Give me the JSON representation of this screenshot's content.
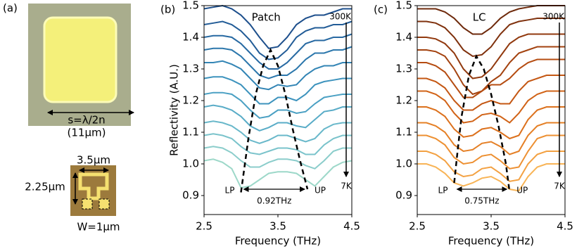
{
  "panel_a": {
    "panel": "(a)",
    "patch_size": "s=λ/2n",
    "patch_size_um": "(11μm)",
    "lc_width": "3.5μm",
    "lc_height": "2.25μm",
    "lc_gap": "W=1μm"
  },
  "chart_data": [
    {
      "type": "line",
      "panel": "(b)",
      "title": "Patch",
      "x_label": "Frequency (THz)",
      "y_label": "Reflectivity (A.U.)",
      "temp_top": "300K",
      "temp_bottom": "7K",
      "lp_label": "LP",
      "up_label": "UP",
      "splitting_label": "0.92THz",
      "xlim": [
        2.5,
        4.5
      ],
      "xticks": [
        2.5,
        3.5,
        4.5
      ],
      "ylim": [
        0.84,
        1.5
      ],
      "yticks": [
        0.9,
        {
          "value": 1,
          "label": "1.0"
        },
        1.1,
        1.2,
        1.3,
        1.4,
        1.5
      ],
      "x": [
        2.5,
        2.625,
        2.75,
        2.875,
        3.0,
        3.125,
        3.25,
        3.375,
        3.5,
        3.625,
        3.75,
        3.875,
        4.0,
        4.125,
        4.25,
        4.375,
        4.5
      ],
      "series": [
        {
          "color": "#1d4f8c",
          "values": [
            1.49,
            1.495,
            1.5,
            1.49,
            1.47,
            1.44,
            1.4,
            1.365,
            1.37,
            1.4,
            1.44,
            1.46,
            1.47,
            1.47,
            1.48,
            1.49,
            1.49
          ]
        },
        {
          "color": "#225c97",
          "values": [
            1.44,
            1.445,
            1.45,
            1.44,
            1.42,
            1.39,
            1.35,
            1.33,
            1.335,
            1.36,
            1.4,
            1.42,
            1.43,
            1.43,
            1.44,
            1.44,
            1.45
          ]
        },
        {
          "color": "#2769a2",
          "values": [
            1.4,
            1.405,
            1.405,
            1.4,
            1.38,
            1.35,
            1.32,
            1.3,
            1.3,
            1.32,
            1.35,
            1.38,
            1.39,
            1.39,
            1.4,
            1.4,
            1.41
          ]
        },
        {
          "color": "#2c77ac",
          "values": [
            1.36,
            1.365,
            1.365,
            1.36,
            1.34,
            1.31,
            1.28,
            1.27,
            1.28,
            1.28,
            1.3,
            1.33,
            1.35,
            1.35,
            1.36,
            1.36,
            1.37
          ]
        },
        {
          "color": "#3385b5",
          "values": [
            1.32,
            1.32,
            1.325,
            1.315,
            1.3,
            1.27,
            1.24,
            1.235,
            1.25,
            1.245,
            1.25,
            1.28,
            1.3,
            1.31,
            1.31,
            1.32,
            1.32
          ]
        },
        {
          "color": "#3d93bd",
          "values": [
            1.27,
            1.275,
            1.275,
            1.265,
            1.25,
            1.22,
            1.19,
            1.19,
            1.21,
            1.21,
            1.2,
            1.22,
            1.25,
            1.26,
            1.265,
            1.27,
            1.27
          ]
        },
        {
          "color": "#4aa0c3",
          "values": [
            1.22,
            1.225,
            1.225,
            1.22,
            1.2,
            1.17,
            1.145,
            1.15,
            1.17,
            1.17,
            1.16,
            1.165,
            1.19,
            1.21,
            1.215,
            1.22,
            1.22
          ]
        },
        {
          "color": "#59acc7",
          "values": [
            1.18,
            1.185,
            1.18,
            1.17,
            1.15,
            1.12,
            1.105,
            1.115,
            1.13,
            1.13,
            1.12,
            1.115,
            1.14,
            1.165,
            1.17,
            1.18,
            1.18
          ]
        },
        {
          "color": "#69b8ca",
          "values": [
            1.13,
            1.135,
            1.13,
            1.12,
            1.1,
            1.075,
            1.065,
            1.075,
            1.09,
            1.09,
            1.08,
            1.07,
            1.08,
            1.11,
            1.125,
            1.13,
            1.13
          ]
        },
        {
          "color": "#7ac3cb",
          "values": [
            1.09,
            1.095,
            1.09,
            1.08,
            1.055,
            1.035,
            1.03,
            1.04,
            1.05,
            1.05,
            1.045,
            1.03,
            1.03,
            1.06,
            1.08,
            1.09,
            1.09
          ]
        },
        {
          "color": "#8bcdcb",
          "values": [
            1.05,
            1.055,
            1.05,
            1.035,
            1.01,
            0.99,
            0.99,
            1.005,
            1.015,
            1.015,
            1.01,
            0.995,
            0.985,
            1.01,
            1.04,
            1.05,
            1.05
          ]
        },
        {
          "color": "#9dd8c9",
          "values": [
            1.01,
            1.015,
            1.005,
            0.985,
            0.925,
            0.93,
            0.95,
            0.97,
            0.975,
            0.975,
            0.97,
            0.95,
            0.93,
            0.96,
            0.99,
            1.005,
            1.01
          ]
        }
      ],
      "dispersion": {
        "color": "#000000",
        "dashed": true,
        "x": [
          3.0,
          3.1,
          3.2,
          3.3,
          3.4,
          3.5,
          3.6,
          3.7,
          3.8,
          3.9
        ],
        "values": [
          0.91,
          1.08,
          1.22,
          1.31,
          1.36,
          1.31,
          1.22,
          1.11,
          1.01,
          0.92
        ]
      }
    },
    {
      "type": "line",
      "panel": "(c)",
      "title": "LC",
      "x_label": "Frequency (THz)",
      "temp_top": "300K",
      "temp_bottom": "7K",
      "lp_label": "LP",
      "up_label": "UP",
      "splitting_label": "0.75THz",
      "xlim": [
        2.5,
        4.5
      ],
      "xticks": [
        2.5,
        3.5,
        4.5
      ],
      "ylim": [
        0.84,
        1.5
      ],
      "yticks": [
        0.9,
        {
          "value": 1,
          "label": "1.0"
        },
        1.1,
        1.2,
        1.3,
        1.4,
        1.5
      ],
      "x": [
        2.5,
        2.625,
        2.75,
        2.875,
        3.0,
        3.125,
        3.25,
        3.375,
        3.5,
        3.625,
        3.75,
        3.875,
        4.0,
        4.125,
        4.25,
        4.375,
        4.5
      ],
      "series": [
        {
          "color": "#6e2a0c",
          "values": [
            1.49,
            1.49,
            1.49,
            1.48,
            1.46,
            1.43,
            1.41,
            1.41,
            1.43,
            1.46,
            1.48,
            1.49,
            1.495,
            1.5,
            1.5,
            1.5,
            1.5
          ]
        },
        {
          "color": "#7f310d",
          "values": [
            1.45,
            1.45,
            1.445,
            1.43,
            1.4,
            1.36,
            1.34,
            1.345,
            1.37,
            1.41,
            1.44,
            1.45,
            1.455,
            1.46,
            1.46,
            1.46,
            1.46
          ]
        },
        {
          "color": "#91390e",
          "values": [
            1.4,
            1.4,
            1.395,
            1.38,
            1.35,
            1.3,
            1.27,
            1.275,
            1.3,
            1.34,
            1.38,
            1.4,
            1.41,
            1.41,
            1.41,
            1.41,
            1.41
          ]
        },
        {
          "color": "#a3420f",
          "values": [
            1.36,
            1.36,
            1.355,
            1.34,
            1.3,
            1.25,
            1.22,
            1.23,
            1.26,
            1.28,
            1.32,
            1.35,
            1.36,
            1.37,
            1.37,
            1.37,
            1.37
          ]
        },
        {
          "color": "#b54c11",
          "values": [
            1.32,
            1.32,
            1.31,
            1.29,
            1.25,
            1.21,
            1.21,
            1.23,
            1.25,
            1.25,
            1.27,
            1.3,
            1.32,
            1.33,
            1.33,
            1.33,
            1.33
          ]
        },
        {
          "color": "#c45713",
          "values": [
            1.27,
            1.27,
            1.26,
            1.24,
            1.2,
            1.17,
            1.17,
            1.19,
            1.2,
            1.19,
            1.19,
            1.23,
            1.26,
            1.27,
            1.28,
            1.28,
            1.28
          ]
        },
        {
          "color": "#d16317",
          "values": [
            1.23,
            1.23,
            1.22,
            1.2,
            1.16,
            1.13,
            1.135,
            1.155,
            1.16,
            1.15,
            1.13,
            1.16,
            1.2,
            1.22,
            1.23,
            1.23,
            1.23
          ]
        },
        {
          "color": "#dc711d",
          "values": [
            1.18,
            1.18,
            1.17,
            1.15,
            1.11,
            1.085,
            1.09,
            1.11,
            1.115,
            1.1,
            1.08,
            1.09,
            1.14,
            1.17,
            1.18,
            1.18,
            1.18
          ]
        },
        {
          "color": "#e58026",
          "values": [
            1.13,
            1.13,
            1.12,
            1.1,
            1.06,
            1.04,
            1.045,
            1.065,
            1.07,
            1.055,
            1.03,
            1.04,
            1.09,
            1.12,
            1.13,
            1.13,
            1.13
          ]
        },
        {
          "color": "#ed9032",
          "values": [
            1.09,
            1.09,
            1.08,
            1.06,
            1.02,
            1.0,
            1.005,
            1.025,
            1.03,
            1.01,
            0.985,
            0.99,
            1.04,
            1.08,
            1.09,
            1.09,
            1.09
          ]
        },
        {
          "color": "#f3a142",
          "values": [
            1.04,
            1.04,
            1.03,
            1.01,
            0.975,
            0.96,
            0.965,
            0.985,
            0.99,
            0.97,
            0.945,
            0.95,
            1.0,
            1.03,
            1.04,
            1.04,
            1.04
          ]
        },
        {
          "color": "#f8b456",
          "values": [
            1.0,
            1.0,
            0.99,
            0.97,
            0.94,
            0.93,
            0.94,
            0.955,
            0.96,
            0.945,
            0.92,
            0.915,
            0.96,
            0.99,
            1.0,
            1.0,
            1.0
          ]
        }
      ],
      "dispersion": {
        "color": "#000000",
        "dashed": true,
        "x": [
          3.0,
          3.05,
          3.1,
          3.2,
          3.3,
          3.4,
          3.5,
          3.6,
          3.7,
          3.75
        ],
        "values": [
          0.94,
          1.05,
          1.15,
          1.28,
          1.34,
          1.3,
          1.22,
          1.12,
          1.0,
          0.91
        ]
      }
    }
  ]
}
